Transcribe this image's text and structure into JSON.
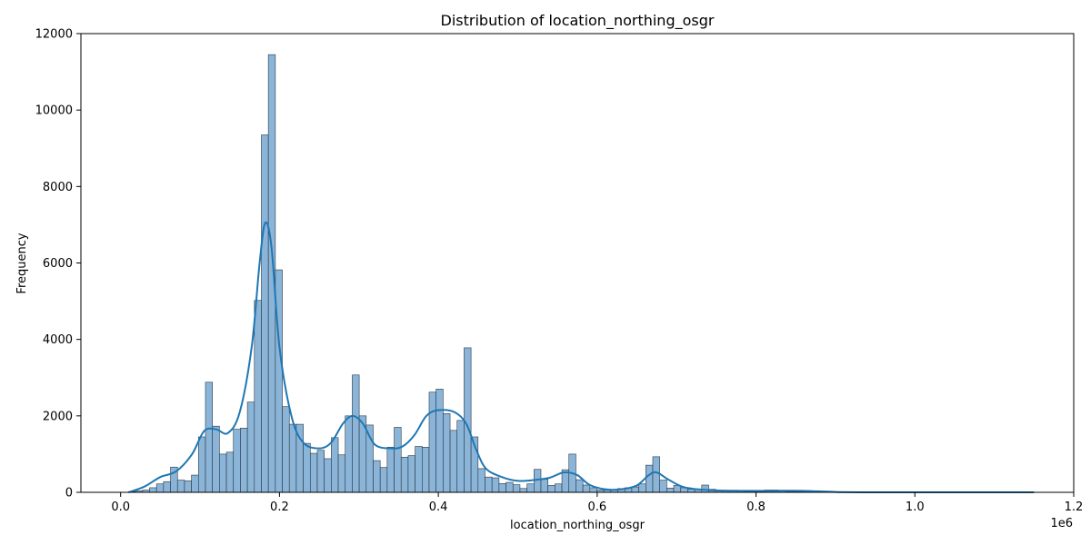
{
  "chart_data": {
    "type": "bar",
    "title": "Distribution of location_northing_osgr",
    "xlabel": "location_northing_osgr",
    "ylabel": "Frequency",
    "x_offset_text": "1e6",
    "xlim": [
      -50000,
      1200000
    ],
    "ylim": [
      0,
      12000
    ],
    "x_ticks": [
      0,
      200000,
      400000,
      600000,
      800000,
      1000000,
      1200000
    ],
    "x_tick_labels": [
      "0.0",
      "0.2",
      "0.4",
      "0.6",
      "0.8",
      "1.0",
      "1.2"
    ],
    "y_ticks": [
      0,
      2000,
      4000,
      6000,
      8000,
      10000,
      12000
    ],
    "y_tick_labels": [
      "0",
      "2000",
      "4000",
      "6000",
      "8000",
      "10000",
      "12000"
    ],
    "grid": false,
    "bar_fill": "#8bb5d8",
    "bar_edge": "#2b3640",
    "kde_color": "#1f77b4",
    "bin_start": 10000,
    "bin_width": 8800,
    "values": [
      20,
      40,
      60,
      120,
      220,
      280,
      660,
      320,
      300,
      450,
      1450,
      2880,
      1730,
      1000,
      1050,
      1650,
      1680,
      2360,
      5020,
      9350,
      11450,
      5820,
      2240,
      1780,
      1780,
      1280,
      1020,
      1100,
      880,
      1430,
      980,
      2000,
      3070,
      2000,
      1760,
      830,
      650,
      1180,
      1700,
      920,
      960,
      1200,
      1180,
      2620,
      2700,
      2060,
      1620,
      1880,
      3780,
      1450,
      620,
      400,
      380,
      230,
      260,
      200,
      100,
      220,
      600,
      340,
      180,
      220,
      590,
      1000,
      330,
      190,
      120,
      60,
      60,
      60,
      100,
      120,
      140,
      220,
      710,
      930,
      320,
      110,
      180,
      120,
      80,
      70,
      190,
      80,
      50,
      40,
      30,
      30,
      20,
      20,
      20,
      60,
      60,
      30,
      20,
      20,
      20,
      10,
      10,
      10,
      10,
      5,
      5,
      5,
      5,
      5,
      5,
      5,
      5,
      5,
      5,
      5,
      5,
      5,
      5,
      5,
      5,
      5,
      5,
      5
    ],
    "kde": {
      "x": [
        10000,
        30000,
        50000,
        70000,
        90000,
        105000,
        120000,
        135000,
        150000,
        165000,
        175000,
        182000,
        190000,
        200000,
        215000,
        230000,
        250000,
        265000,
        280000,
        292000,
        305000,
        320000,
        340000,
        355000,
        370000,
        385000,
        400000,
        420000,
        435000,
        448000,
        460000,
        480000,
        500000,
        520000,
        540000,
        558000,
        575000,
        590000,
        610000,
        630000,
        650000,
        665000,
        675000,
        690000,
        710000,
        740000,
        780000,
        820000,
        860000,
        900000,
        950000,
        1000000,
        1050000,
        1100000,
        1150000
      ],
      "y": [
        0,
        150,
        400,
        550,
        1000,
        1600,
        1650,
        1550,
        2100,
        3800,
        6000,
        7050,
        6400,
        3800,
        2000,
        1300,
        1150,
        1300,
        1800,
        2000,
        1800,
        1250,
        1150,
        1200,
        1500,
        2000,
        2150,
        2100,
        1800,
        1100,
        620,
        400,
        300,
        320,
        380,
        520,
        450,
        200,
        80,
        80,
        180,
        450,
        520,
        330,
        130,
        60,
        40,
        40,
        40,
        10,
        0,
        0,
        0,
        0,
        0
      ]
    }
  }
}
